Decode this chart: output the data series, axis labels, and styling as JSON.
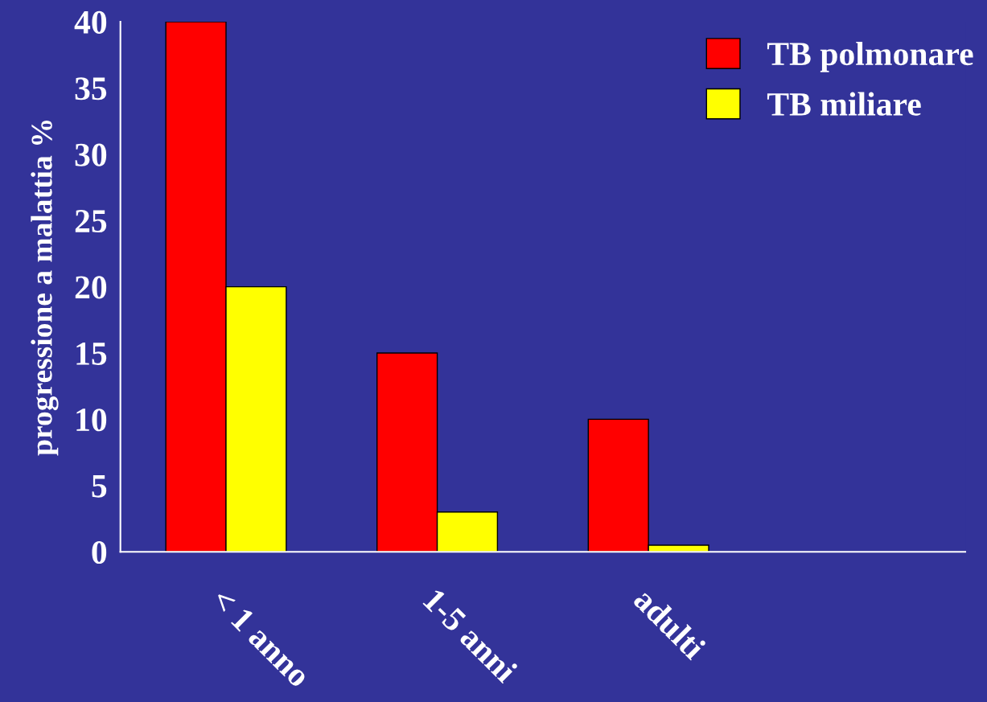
{
  "chart_data": {
    "type": "bar",
    "ylabel": "progressione a malattia %",
    "categories": [
      "< 1 anno",
      "1-5 anni",
      "adulti",
      null
    ],
    "series": [
      {
        "name": "TB polmonare",
        "color": "#ff0000",
        "values": [
          40,
          15,
          10,
          null
        ]
      },
      {
        "name": "TB miliare",
        "color": "#ffff00",
        "values": [
          20,
          3,
          0.5,
          null
        ]
      }
    ],
    "ylim": [
      0,
      40
    ],
    "yticks": [
      0,
      5,
      10,
      15,
      20,
      25,
      30,
      35,
      40
    ],
    "grid": false,
    "legend": "top right"
  }
}
